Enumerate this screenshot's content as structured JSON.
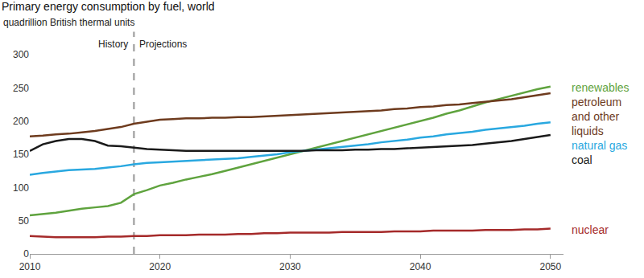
{
  "chart_data": {
    "type": "line",
    "title": "Primary energy consumption by fuel, world",
    "subtitle": "quadrillion British thermal units",
    "x": [
      2010,
      2011,
      2012,
      2013,
      2014,
      2015,
      2016,
      2017,
      2018,
      2019,
      2020,
      2021,
      2022,
      2023,
      2024,
      2025,
      2026,
      2027,
      2028,
      2029,
      2030,
      2031,
      2032,
      2033,
      2034,
      2035,
      2036,
      2037,
      2038,
      2039,
      2040,
      2041,
      2042,
      2043,
      2044,
      2045,
      2046,
      2047,
      2048,
      2049,
      2050
    ],
    "xlim": [
      2010,
      2051
    ],
    "xticks": [
      2010,
      2020,
      2030,
      2040,
      2050
    ],
    "ylim": [
      0,
      300
    ],
    "yticks": [
      0,
      50,
      100,
      150,
      200,
      250,
      300
    ],
    "grid": false,
    "divider": {
      "x": 2018,
      "labels": [
        "History",
        "Projections"
      ]
    },
    "series": [
      {
        "name": "renewables",
        "color": "#5fa33e",
        "values": [
          58,
          60,
          62,
          65,
          68,
          70,
          72,
          77,
          90,
          96,
          103,
          107,
          112,
          116,
          120,
          125,
          130,
          135,
          140,
          145,
          150,
          155,
          160,
          165,
          170,
          175,
          180,
          185,
          190,
          195,
          200,
          205,
          211,
          216,
          222,
          228,
          233,
          238,
          243,
          248,
          252
        ]
      },
      {
        "name": "petroleum and other liquids",
        "color": "#6e3b1e",
        "values": [
          177,
          178,
          180,
          181,
          183,
          185,
          188,
          191,
          196,
          199,
          202,
          203,
          204,
          204,
          205,
          205,
          206,
          206,
          207,
          208,
          209,
          210,
          211,
          212,
          213,
          214,
          215,
          216,
          218,
          219,
          221,
          222,
          224,
          225,
          227,
          229,
          231,
          233,
          236,
          239,
          242
        ]
      },
      {
        "name": "natural gas",
        "color": "#29a8e0",
        "values": [
          119,
          122,
          124,
          126,
          127,
          128,
          130,
          132,
          135,
          137,
          138,
          139,
          140,
          141,
          142,
          143,
          144,
          146,
          148,
          150,
          153,
          155,
          157,
          159,
          161,
          163,
          165,
          168,
          170,
          172,
          175,
          177,
          180,
          182,
          184,
          187,
          189,
          191,
          193,
          196,
          198
        ]
      },
      {
        "name": "coal",
        "color": "#1a1a1a",
        "values": [
          155,
          165,
          170,
          173,
          173,
          170,
          163,
          162,
          160,
          158,
          157,
          156,
          155,
          155,
          155,
          155,
          155,
          155,
          155,
          155,
          155,
          155,
          156,
          156,
          156,
          157,
          157,
          158,
          158,
          159,
          160,
          161,
          162,
          163,
          164,
          166,
          168,
          170,
          173,
          176,
          179
        ]
      },
      {
        "name": "nuclear",
        "color": "#a52a2a",
        "values": [
          27,
          26,
          25,
          25,
          25,
          25,
          26,
          26,
          27,
          27,
          28,
          28,
          28,
          29,
          29,
          29,
          30,
          30,
          31,
          31,
          32,
          32,
          32,
          32,
          33,
          33,
          33,
          33,
          34,
          34,
          34,
          35,
          35,
          35,
          35,
          36,
          36,
          36,
          37,
          37,
          38
        ]
      }
    ]
  }
}
